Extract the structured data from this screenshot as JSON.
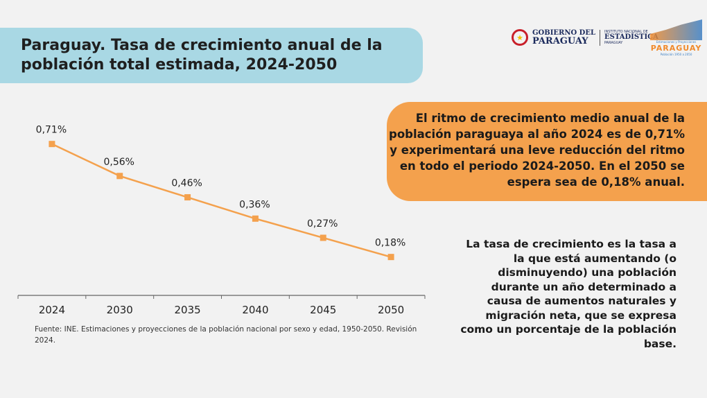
{
  "header": {
    "title": "Paraguay. Tasa de crecimiento anual de la población total estimada, 2024-2050"
  },
  "logos": {
    "gobierno_line1": "GOBIERNO DEL",
    "gobierno_line2": "PARAGUAY",
    "ine_line1": "INSTITUTO NACIONAL DE",
    "ine_line2": "ESTADÍSTICA",
    "ine_line3": "PARAGUAY",
    "proj_line1": "Estimaciones y Proyecciones",
    "proj_line2": "PARAGUAY",
    "proj_line3": "Población 1950 a 2050"
  },
  "highlight": "El ritmo de crecimiento medio anual de la población paraguaya al año 2024 es de 0,71% y experimentará una leve reducción del ritmo en todo el periodo 2024-2050. En el 2050 se espera sea de 0,18% anual.",
  "definition": "La tasa de crecimiento es la tasa a la que está aumentando (o disminuyendo) una población durante un año determinado a causa de aumentos naturales y migración neta, que se expresa como un porcentaje de la población base.",
  "source": "Fuente: INE. Estimaciones y proyecciones de la población nacional por sexo y edad, 1950-2050. Revisión 2024.",
  "colors": {
    "line": "#f4a14d",
    "title_bg": "#a9d8e4",
    "highlight_bg": "#f4a14d"
  },
  "chart_data": {
    "type": "line",
    "categories": [
      "2024",
      "2030",
      "2035",
      "2040",
      "2045",
      "2050"
    ],
    "values": [
      0.71,
      0.56,
      0.46,
      0.36,
      0.27,
      0.18
    ],
    "data_labels": [
      "0,71%",
      "0,56%",
      "0,46%",
      "0,36%",
      "0,27%",
      "0,18%"
    ],
    "ylim": [
      0,
      0.8
    ],
    "grid": false,
    "marker": "square"
  }
}
